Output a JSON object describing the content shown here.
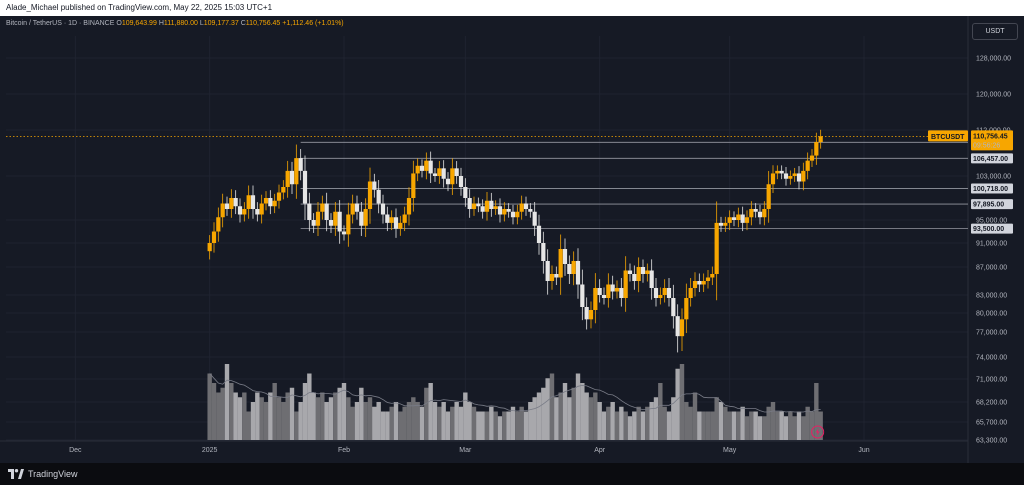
{
  "header": {
    "published_text": "Alade_Michael published on TradingView.com, May 22, 2025 15:03 UTC+1"
  },
  "symbol": {
    "name": "Bitcoin / TetherUS · 1D · BINANCE",
    "open_label": "O",
    "open": "109,643.99",
    "high_label": "H",
    "high": "111,880.00",
    "low_label": "L",
    "low": "109,177.37",
    "close_label": "C",
    "close": "110,756.45",
    "change": "+1,112.46 (+1.01%)"
  },
  "currency": "USDT",
  "footer": {
    "brand": "TradingView"
  },
  "colors": {
    "background": "#161a25",
    "bull": "#f7a600",
    "bear": "#e6e6e6",
    "volume_bull": "#6e6e72",
    "volume_bear": "#a8a8ac",
    "price_line": "#f7a600"
  },
  "chart_data": {
    "type": "candlestick",
    "title": "",
    "xlabel": "",
    "ylabel": "",
    "ylim": [
      63300,
      130000
    ],
    "y_ticks": [
      "128,000.00",
      "120,000.00",
      "112,000.00",
      "103,000.00",
      "95,000.00",
      "91,000.00",
      "87,000.00",
      "83,000.00",
      "80,000.00",
      "77,000.00",
      "74,000.00",
      "71,000.00",
      "68,200.00",
      "65,700.00",
      "63,300.00"
    ],
    "y_tick_values": [
      128000,
      120000,
      112000,
      103000,
      95000,
      91000,
      87000,
      83000,
      80000,
      77000,
      74000,
      71000,
      68200,
      65700,
      63300
    ],
    "x_tick_labels": [
      "Dec",
      "2025",
      "Feb",
      "Mar",
      "Apr",
      "May",
      "Jun"
    ],
    "x_tick_dates": [
      "2024-12-01",
      "2025-01-01",
      "2025-02-01",
      "2025-03-01",
      "2025-04-01",
      "2025-05-01",
      "2025-06-01"
    ],
    "x_range": [
      "2024-11-15",
      "2025-06-25"
    ],
    "last_date": "2025-05-22",
    "current_price": {
      "symbol_label": "BTCUSDT",
      "price": "110,756.45",
      "countdown": "09:56:26",
      "value": 110756.45
    },
    "levels": [
      {
        "label": "109,588.00",
        "value": 109588
      },
      {
        "label": "106,457.00",
        "value": 106457
      },
      {
        "label": "100,718.00",
        "value": 100718
      },
      {
        "label": "97,895.00",
        "value": 97895
      },
      {
        "label": "93,500.00",
        "value": 93500
      }
    ],
    "series": [
      {
        "kind": "close",
        "values": [
          91000,
          93000,
          95500,
          98000,
          97000,
          99000,
          97500,
          96000,
          97000,
          99500,
          97000,
          96000,
          98000,
          99000,
          97500,
          98500,
          100000,
          101000,
          104000,
          101500,
          106500,
          104000,
          98000,
          95000,
          94000,
          96500,
          98000,
          95000,
          94000,
          96500,
          93000,
          92500,
          96000,
          98000,
          96500,
          94000,
          97000,
          102000,
          100500,
          98000,
          96000,
          94500,
          95500,
          93500,
          94500,
          96000,
          99000,
          103500,
          105000,
          104000,
          106000,
          103500,
          103000,
          104500,
          102500,
          101500,
          104500,
          103000,
          101000,
          99000,
          97000,
          98000,
          97500,
          96500,
          98500,
          97000,
          97500,
          96000,
          97000,
          96500,
          95500,
          96500,
          98000,
          97000,
          96500,
          94000,
          91000,
          88000,
          85000,
          86000,
          85500,
          90000,
          87500,
          86000,
          88000,
          84500,
          81000,
          79000,
          80500,
          84000,
          83000,
          82500,
          84500,
          83500,
          84000,
          82500,
          86500,
          86000,
          85000,
          87000,
          86000,
          86500,
          84000,
          82500,
          83000,
          84000,
          82500,
          79500,
          76500,
          79000,
          82500,
          84000,
          85000,
          84500,
          85000,
          85500,
          86000,
          94500,
          94000,
          94500,
          95500,
          95000,
          96000,
          94500,
          95500,
          97000,
          96500,
          95500,
          97000,
          101500,
          103500,
          104000,
          103500,
          102500,
          103000,
          103500,
          102000,
          104000,
          106000,
          107000,
          109643.99,
          110756.45
        ]
      },
      {
        "kind": "volume_relative",
        "values": [
          0.7,
          0.6,
          0.5,
          0.55,
          0.8,
          0.6,
          0.5,
          0.45,
          0.5,
          0.3,
          0.4,
          0.5,
          0.45,
          0.4,
          0.5,
          0.6,
          0.45,
          0.4,
          0.5,
          0.55,
          0.3,
          0.4,
          0.6,
          0.7,
          0.5,
          0.45,
          0.5,
          0.4,
          0.45,
          0.5,
          0.55,
          0.6,
          0.45,
          0.35,
          0.4,
          0.55,
          0.4,
          0.45,
          0.35,
          0.4,
          0.3,
          0.3,
          0.35,
          0.4,
          0.3,
          0.35,
          0.4,
          0.45,
          0.4,
          0.35,
          0.55,
          0.6,
          0.4,
          0.35,
          0.4,
          0.3,
          0.35,
          0.4,
          0.35,
          0.5,
          0.4,
          0.35,
          0.3,
          0.3,
          0.3,
          0.35,
          0.3,
          0.25,
          0.3,
          0.3,
          0.35,
          0.3,
          0.35,
          0.3,
          0.4,
          0.45,
          0.5,
          0.55,
          0.65,
          0.7,
          0.45,
          0.5,
          0.6,
          0.45,
          0.55,
          0.7,
          0.6,
          0.5,
          0.45,
          0.5,
          0.4,
          0.3,
          0.35,
          0.4,
          0.3,
          0.35,
          0.3,
          0.25,
          0.3,
          0.35,
          0.3,
          0.35,
          0.4,
          0.45,
          0.6,
          0.35,
          0.3,
          0.45,
          0.75,
          0.8,
          0.4,
          0.35,
          0.5,
          0.3,
          0.3,
          0.3,
          0.3,
          0.45,
          0.4,
          0.35,
          0.3,
          0.3,
          0.3,
          0.35,
          0.25,
          0.3,
          0.3,
          0.25,
          0.25,
          0.35,
          0.4,
          0.3,
          0.3,
          0.25,
          0.3,
          0.25,
          0.3,
          0.25,
          0.35,
          0.3,
          0.6,
          0.3
        ]
      }
    ]
  }
}
